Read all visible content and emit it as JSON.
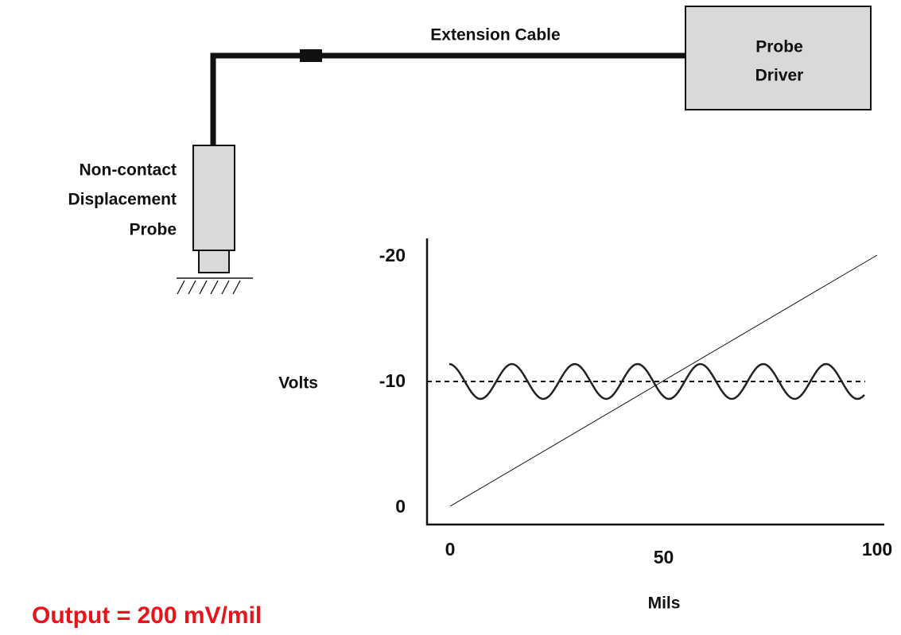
{
  "cable_label": "Extension Cable",
  "driver_label": [
    "Probe",
    "Driver"
  ],
  "probe_label": [
    "Non-contact",
    "Displacement",
    "Probe"
  ],
  "graph": {
    "type": "line",
    "y_label": "Volts",
    "x_label": "Mils",
    "xlim": [
      0,
      100
    ],
    "ylim": [
      0,
      -20
    ],
    "xticks": [
      0,
      50,
      100
    ],
    "yticks": [
      -20,
      -10,
      0
    ],
    "x": [
      0,
      100
    ],
    "values": [
      0,
      -20
    ]
  },
  "output_note": "Output = 200 mV/mil"
}
